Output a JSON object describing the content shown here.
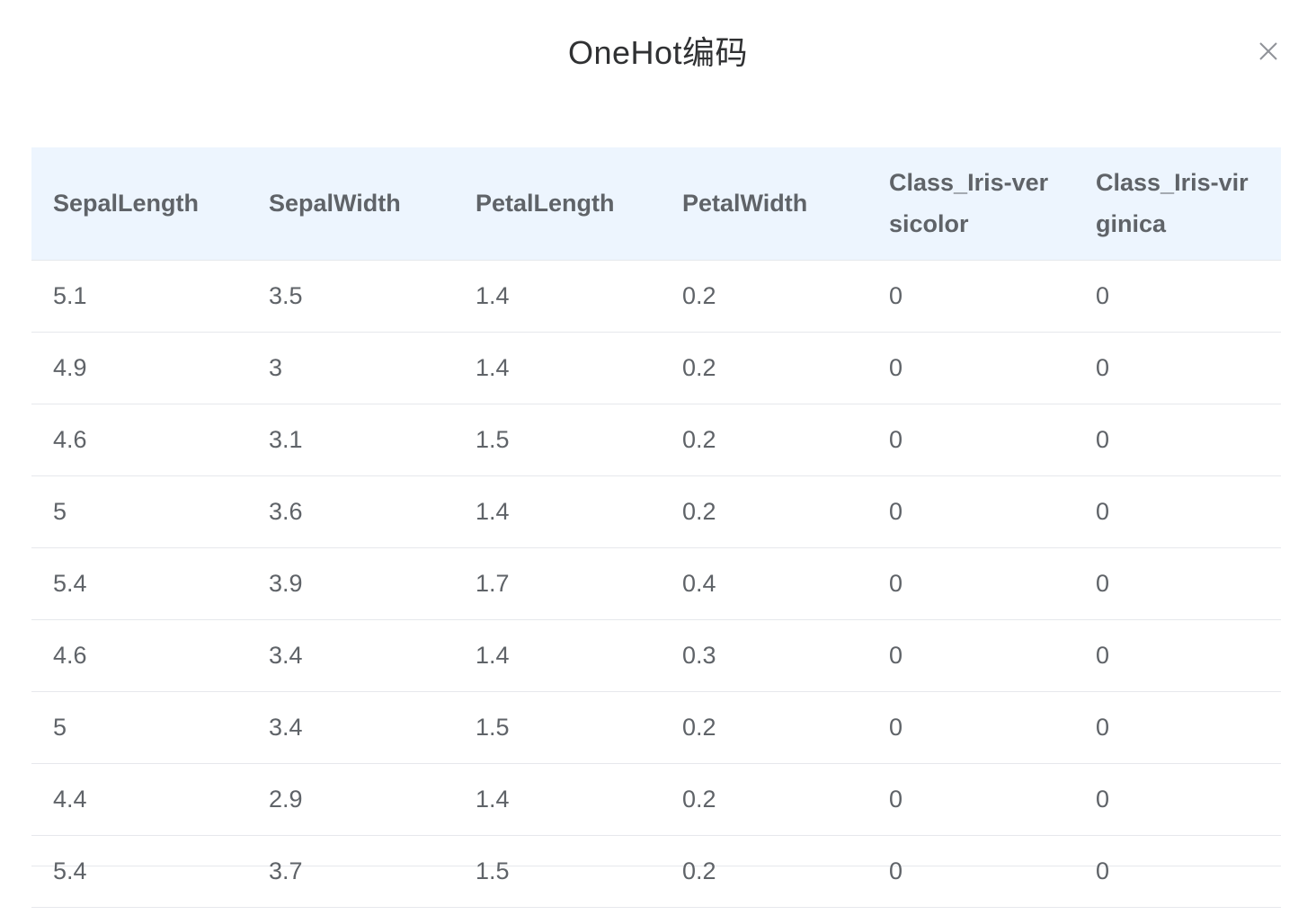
{
  "dialog": {
    "title": "OneHot编码",
    "close_icon": "close-icon"
  },
  "table": {
    "columns": [
      "SepalLength",
      "SepalWidth",
      "PetalLength",
      "PetalWidth",
      "Class_Iris-versicolor",
      "Class_Iris-virginica"
    ],
    "rows": [
      [
        "5.1",
        "3.5",
        "1.4",
        "0.2",
        "0",
        "0"
      ],
      [
        "4.9",
        "3",
        "1.4",
        "0.2",
        "0",
        "0"
      ],
      [
        "4.6",
        "3.1",
        "1.5",
        "0.2",
        "0",
        "0"
      ],
      [
        "5",
        "3.6",
        "1.4",
        "0.2",
        "0",
        "0"
      ],
      [
        "5.4",
        "3.9",
        "1.7",
        "0.4",
        "0",
        "0"
      ],
      [
        "4.6",
        "3.4",
        "1.4",
        "0.3",
        "0",
        "0"
      ],
      [
        "5",
        "3.4",
        "1.5",
        "0.2",
        "0",
        "0"
      ],
      [
        "4.4",
        "2.9",
        "1.4",
        "0.2",
        "0",
        "0"
      ],
      [
        "5.4",
        "3.7",
        "1.5",
        "0.2",
        "0",
        "0"
      ]
    ]
  },
  "colors": {
    "header_bg": "#edf5fe",
    "border": "#e6e8ec",
    "text": "#5f6368",
    "title": "#303133"
  }
}
